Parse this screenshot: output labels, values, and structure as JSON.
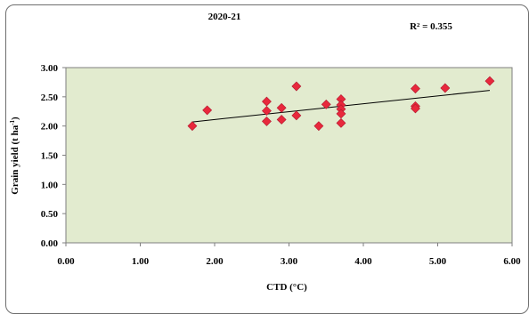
{
  "chart_data": {
    "type": "scatter",
    "title": "2020-21",
    "annotation": "R² = 0.355",
    "xlabel": "CTD (°C)",
    "ylabel_main": "Grain yield (t ha",
    "ylabel_sup": "-1",
    "ylabel_end": ")",
    "xlim": [
      0,
      6
    ],
    "ylim": [
      0,
      3
    ],
    "x_ticks": [
      "0.00",
      "1.00",
      "2.00",
      "3.00",
      "4.00",
      "5.00",
      "6.00"
    ],
    "y_ticks": [
      "0.00",
      "0.50",
      "1.00",
      "1.50",
      "2.00",
      "2.50",
      "3.00"
    ],
    "grid": false,
    "legend": "none",
    "plot_bg_color": "#e2ebcf",
    "marker_color": "#e8283c",
    "marker_shape": "diamond",
    "trendline_color": "#000000",
    "trendline": {
      "x": [
        1.7,
        5.7
      ],
      "y": [
        2.07,
        2.61
      ]
    },
    "points": [
      {
        "x": 1.7,
        "y": 2.0
      },
      {
        "x": 1.9,
        "y": 2.27
      },
      {
        "x": 2.7,
        "y": 2.42
      },
      {
        "x": 2.7,
        "y": 2.26
      },
      {
        "x": 2.7,
        "y": 2.08
      },
      {
        "x": 2.9,
        "y": 2.31
      },
      {
        "x": 2.9,
        "y": 2.11
      },
      {
        "x": 3.1,
        "y": 2.68
      },
      {
        "x": 3.1,
        "y": 2.18
      },
      {
        "x": 3.4,
        "y": 2.0
      },
      {
        "x": 3.5,
        "y": 2.37
      },
      {
        "x": 3.7,
        "y": 2.46
      },
      {
        "x": 3.7,
        "y": 2.36
      },
      {
        "x": 3.7,
        "y": 2.29
      },
      {
        "x": 3.7,
        "y": 2.21
      },
      {
        "x": 3.7,
        "y": 2.05
      },
      {
        "x": 4.7,
        "y": 2.64
      },
      {
        "x": 4.7,
        "y": 2.34
      },
      {
        "x": 4.7,
        "y": 2.3
      },
      {
        "x": 5.1,
        "y": 2.65
      },
      {
        "x": 5.7,
        "y": 2.77
      }
    ]
  }
}
